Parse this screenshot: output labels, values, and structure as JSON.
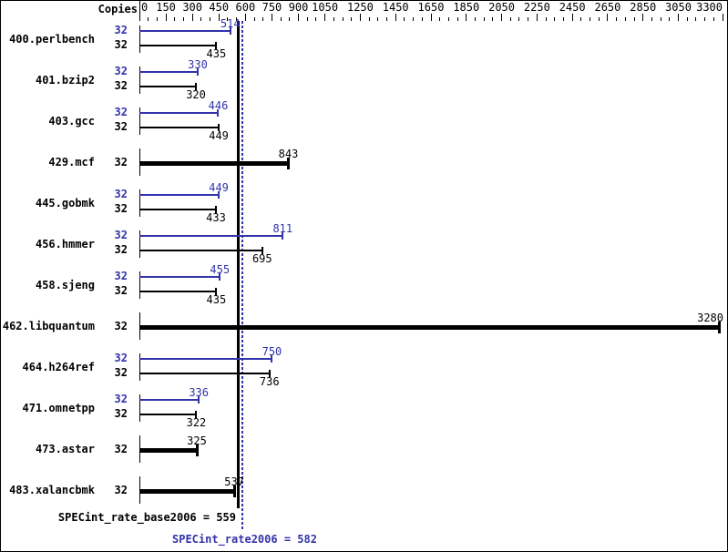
{
  "header": {
    "copies_label": "Copies"
  },
  "colors": {
    "peak_blue": "#3333aa",
    "base_black": "#000000",
    "background": "#ffffff",
    "border": "#000000"
  },
  "chart_data": {
    "type": "bar",
    "orientation": "horizontal",
    "title": "",
    "xlabel": "",
    "ylabel": "",
    "grid": false,
    "axis": {
      "min": 0,
      "max": 3300,
      "tick_labels": [
        0,
        150,
        300,
        450,
        600,
        750,
        900,
        1050,
        1250,
        1450,
        1650,
        1850,
        2050,
        2250,
        2450,
        2650,
        2850,
        3050,
        3300
      ],
      "minor_tick_step": 50
    },
    "rows": [
      {
        "name": "400.perlbench",
        "copies": 32,
        "bars": [
          {
            "type": "peak",
            "value": 514
          },
          {
            "type": "base",
            "value": 435
          }
        ]
      },
      {
        "name": "401.bzip2",
        "copies": 32,
        "bars": [
          {
            "type": "peak",
            "value": 330
          },
          {
            "type": "base",
            "value": 320
          }
        ]
      },
      {
        "name": "403.gcc",
        "copies": 32,
        "bars": [
          {
            "type": "peak",
            "value": 446
          },
          {
            "type": "base",
            "value": 449
          }
        ]
      },
      {
        "name": "429.mcf",
        "copies": 32,
        "bars": [
          {
            "type": "both",
            "value": 843
          }
        ]
      },
      {
        "name": "445.gobmk",
        "copies": 32,
        "bars": [
          {
            "type": "peak",
            "value": 449
          },
          {
            "type": "base",
            "value": 433
          }
        ]
      },
      {
        "name": "456.hmmer",
        "copies": 32,
        "bars": [
          {
            "type": "peak",
            "value": 811
          },
          {
            "type": "base",
            "value": 695
          }
        ]
      },
      {
        "name": "458.sjeng",
        "copies": 32,
        "bars": [
          {
            "type": "peak",
            "value": 455
          },
          {
            "type": "base",
            "value": 435
          }
        ]
      },
      {
        "name": "462.libquantum",
        "copies": 32,
        "bars": [
          {
            "type": "both",
            "value": 3280
          }
        ]
      },
      {
        "name": "464.h264ref",
        "copies": 32,
        "bars": [
          {
            "type": "peak",
            "value": 750
          },
          {
            "type": "base",
            "value": 736
          }
        ]
      },
      {
        "name": "471.omnetpp",
        "copies": 32,
        "bars": [
          {
            "type": "peak",
            "value": 336
          },
          {
            "type": "base",
            "value": 322
          }
        ]
      },
      {
        "name": "473.astar",
        "copies": 32,
        "bars": [
          {
            "type": "both",
            "value": 325
          }
        ]
      },
      {
        "name": "483.xalancbmk",
        "copies": 32,
        "bars": [
          {
            "type": "both",
            "value": 537
          }
        ]
      }
    ],
    "summary": {
      "base": {
        "label": "SPECint_rate_base2006",
        "value": 559
      },
      "peak": {
        "label": "SPECint_rate2006",
        "value": 582
      }
    }
  }
}
